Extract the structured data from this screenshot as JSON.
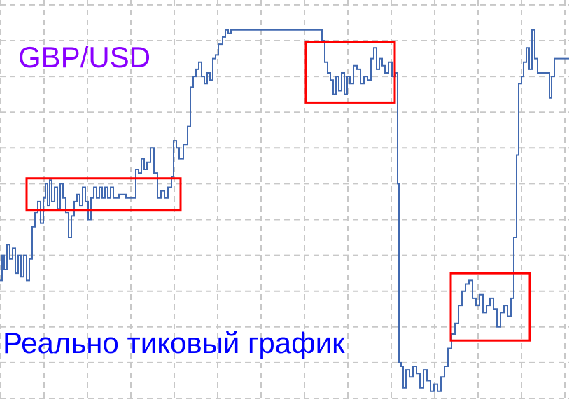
{
  "chart_data": {
    "type": "line",
    "title": "GBP/USD",
    "annotation": "Реально тиковый график",
    "xlabel": "",
    "ylabel": "",
    "grid": true,
    "step": true,
    "xlim": [
      0,
      813
    ],
    "ylim": [
      -0.1,
      11.1
    ],
    "colors": {
      "line": "#4169b0",
      "grid": "#c8c8c8",
      "box": "#ff0000",
      "title": "#8a00ff",
      "annotation": "#0000ff"
    },
    "points": [
      [
        0,
        3.3
      ],
      [
        3,
        4.0
      ],
      [
        6,
        3.6
      ],
      [
        10,
        4.3
      ],
      [
        14,
        3.9
      ],
      [
        18,
        4.2
      ],
      [
        22,
        3.5
      ],
      [
        26,
        4.0
      ],
      [
        30,
        3.4
      ],
      [
        34,
        4.0
      ],
      [
        38,
        3.3
      ],
      [
        42,
        3.9
      ],
      [
        46,
        4.8
      ],
      [
        50,
        5.2
      ],
      [
        54,
        5.5
      ],
      [
        58,
        4.9
      ],
      [
        62,
        5.6
      ],
      [
        65,
        6.0
      ],
      [
        68,
        5.4
      ],
      [
        71,
        6.1
      ],
      [
        74,
        5.5
      ],
      [
        78,
        5.9
      ],
      [
        82,
        5.3
      ],
      [
        86,
        6.0
      ],
      [
        90,
        5.6
      ],
      [
        94,
        5.2
      ],
      [
        98,
        4.5
      ],
      [
        102,
        5.1
      ],
      [
        106,
        5.5
      ],
      [
        110,
        5.7
      ],
      [
        114,
        5.4
      ],
      [
        118,
        5.9
      ],
      [
        122,
        5.5
      ],
      [
        126,
        5.0
      ],
      [
        130,
        5.6
      ],
      [
        134,
        5.9
      ],
      [
        138,
        5.6
      ],
      [
        142,
        5.9
      ],
      [
        146,
        5.6
      ],
      [
        150,
        5.9
      ],
      [
        154,
        5.6
      ],
      [
        158,
        5.9
      ],
      [
        162,
        5.6
      ],
      [
        170,
        5.7
      ],
      [
        180,
        5.6
      ],
      [
        190,
        5.6
      ],
      [
        194,
        6.4
      ],
      [
        198,
        6.3
      ],
      [
        202,
        6.7
      ],
      [
        206,
        6.4
      ],
      [
        210,
        6.6
      ],
      [
        215,
        7.0
      ],
      [
        220,
        6.3
      ],
      [
        225,
        5.6
      ],
      [
        230,
        5.8
      ],
      [
        235,
        5.6
      ],
      [
        240,
        5.9
      ],
      [
        245,
        6.2
      ],
      [
        248,
        7.2
      ],
      [
        252,
        7.0
      ],
      [
        256,
        6.7
      ],
      [
        262,
        7.1
      ],
      [
        268,
        7.6
      ],
      [
        272,
        8.7
      ],
      [
        276,
        9.0
      ],
      [
        280,
        9.2
      ],
      [
        284,
        9.4
      ],
      [
        288,
        9.0
      ],
      [
        292,
        8.8
      ],
      [
        296,
        9.1
      ],
      [
        300,
        8.9
      ],
      [
        304,
        9.5
      ],
      [
        308,
        9.6
      ],
      [
        312,
        9.9
      ],
      [
        318,
        10.1
      ],
      [
        322,
        10.3
      ],
      [
        326,
        10.2
      ],
      [
        330,
        10.3
      ],
      [
        458,
        10.3
      ],
      [
        460,
        10.0
      ],
      [
        464,
        9.4
      ],
      [
        468,
        9.1
      ],
      [
        472,
        8.9
      ],
      [
        476,
        8.5
      ],
      [
        480,
        9.0
      ],
      [
        484,
        8.6
      ],
      [
        488,
        9.1
      ],
      [
        492,
        8.5
      ],
      [
        496,
        9.0
      ],
      [
        500,
        8.8
      ],
      [
        505,
        9.3
      ],
      [
        510,
        9.2
      ],
      [
        515,
        8.8
      ],
      [
        520,
        9.0
      ],
      [
        525,
        8.9
      ],
      [
        530,
        9.5
      ],
      [
        534,
        9.8
      ],
      [
        538,
        9.2
      ],
      [
        542,
        9.5
      ],
      [
        546,
        9.3
      ],
      [
        550,
        9.1
      ],
      [
        555,
        9.4
      ],
      [
        560,
        9.0
      ],
      [
        565,
        9.1
      ],
      [
        568,
        6.0
      ],
      [
        570,
        1.0
      ],
      [
        573,
        0.9
      ],
      [
        576,
        0.3
      ],
      [
        580,
        0.8
      ],
      [
        585,
        0.6
      ],
      [
        590,
        0.9
      ],
      [
        595,
        0.7
      ],
      [
        600,
        0.3
      ],
      [
        605,
        0.8
      ],
      [
        610,
        0.5
      ],
      [
        615,
        0.2
      ],
      [
        620,
        0.4
      ],
      [
        625,
        0.2
      ],
      [
        630,
        0.6
      ],
      [
        635,
        0.9
      ],
      [
        640,
        1.4
      ],
      [
        645,
        1.8
      ],
      [
        650,
        2.1
      ],
      [
        655,
        2.6
      ],
      [
        660,
        3.0
      ],
      [
        665,
        3.2
      ],
      [
        670,
        3.3
      ],
      [
        675,
        2.8
      ],
      [
        680,
        2.6
      ],
      [
        685,
        2.9
      ],
      [
        690,
        2.4
      ],
      [
        695,
        2.6
      ],
      [
        700,
        2.8
      ],
      [
        705,
        2.5
      ],
      [
        710,
        2.0
      ],
      [
        715,
        2.4
      ],
      [
        720,
        2.6
      ],
      [
        725,
        2.3
      ],
      [
        730,
        2.8
      ],
      [
        734,
        4.5
      ],
      [
        738,
        6.8
      ],
      [
        741,
        8.8
      ],
      [
        745,
        9.0
      ],
      [
        748,
        9.4
      ],
      [
        752,
        9.8
      ],
      [
        756,
        9.2
      ],
      [
        760,
        10.3
      ],
      [
        764,
        9.5
      ],
      [
        768,
        9.1
      ],
      [
        775,
        9.1
      ],
      [
        782,
        9.1
      ],
      [
        785,
        8.4
      ],
      [
        788,
        9.0
      ],
      [
        792,
        9.5
      ],
      [
        813,
        9.5
      ]
    ],
    "highlight_boxes": [
      {
        "x": [
          38,
          258
        ],
        "y": [
          5.27,
          6.15
        ]
      },
      {
        "x": [
          437,
          564
        ],
        "y": [
          8.27,
          9.96
        ]
      },
      {
        "x": [
          644,
          757
        ],
        "y": [
          1.62,
          3.5
        ]
      }
    ]
  }
}
